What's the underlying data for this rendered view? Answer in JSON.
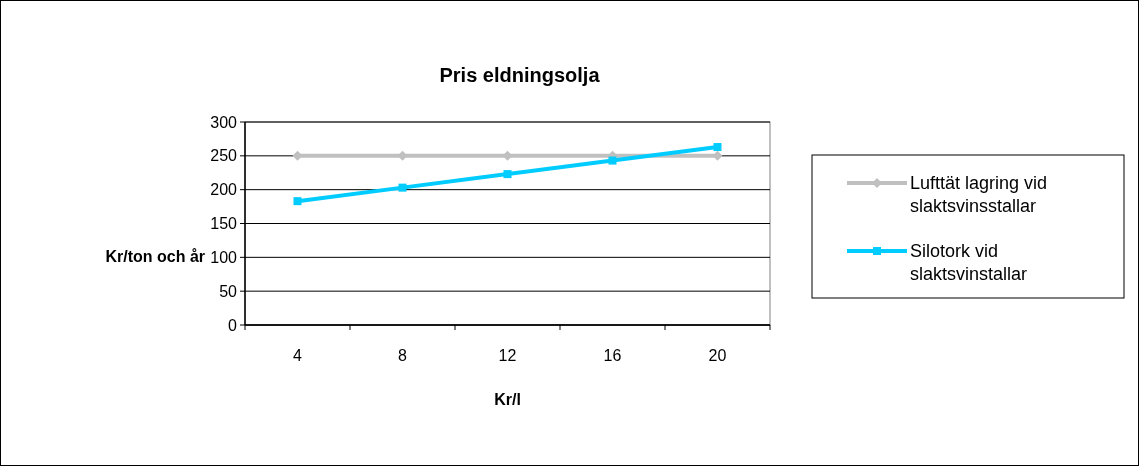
{
  "chart_data": {
    "type": "line",
    "title": "Pris eldningsolja",
    "xlabel": "Kr/l",
    "ylabel": "Kr/ton och år",
    "categories": [
      "4",
      "8",
      "12",
      "16",
      "20"
    ],
    "ylim": [
      0,
      300
    ],
    "yticks": [
      0,
      50,
      100,
      150,
      200,
      250,
      300
    ],
    "grid": "y",
    "legend": "right",
    "series": [
      {
        "name": "Lufttät lagring vid slaktsvinsstallar",
        "color": "#c0c0c0",
        "marker": "diamond",
        "values": [
          250,
          250,
          250,
          250,
          250
        ]
      },
      {
        "name": "Silotork vid slaktsvinstallar",
        "color": "#00ccff",
        "marker": "square",
        "values": [
          183,
          203,
          223,
          243,
          263
        ]
      }
    ]
  }
}
